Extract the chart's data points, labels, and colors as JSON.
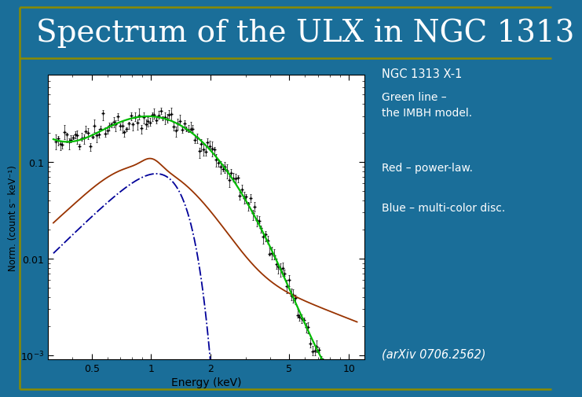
{
  "title": "Spectrum of the ULX in NGC 1313",
  "bg_color": "#1a6e99",
  "title_color": "#ffffff",
  "title_fontsize": 28,
  "border_color": "#8B8B00",
  "annotation_label": "NGC 1313 X-1",
  "green_label": "Green line –\nthe IMBH model.",
  "red_label": "Red – power-law.",
  "blue_label": "Blue – multi-color disc.",
  "arxiv_label": "(arXiv 0706.2562)",
  "plot_bg": "#ffffff",
  "xlabel": "Energy (keV)",
  "ylabel": "Norm. (count s⁻ keV⁻¹)",
  "xlim_log": [
    0.3,
    12.0
  ],
  "ylim_log": [
    0.0009,
    0.8
  ],
  "green_color": "#00bb00",
  "red_color": "#993300",
  "blue_color": "#000099",
  "text_color": "#ffffff"
}
